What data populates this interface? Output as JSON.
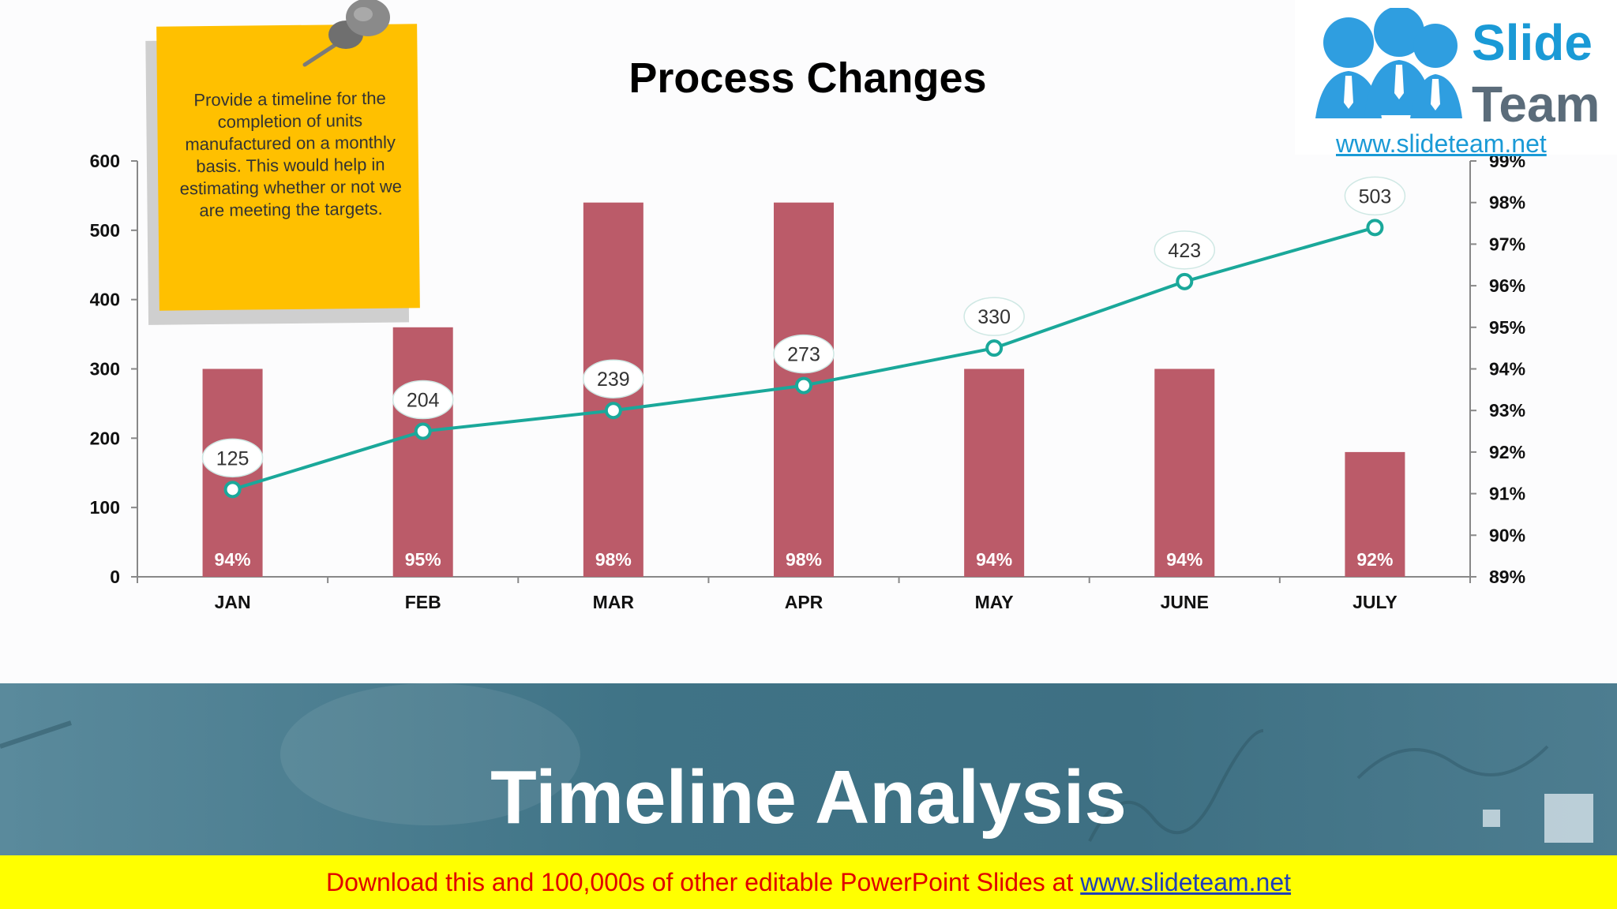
{
  "chart_data": {
    "type": "bar",
    "title": "Process Changes",
    "categories": [
      "JAN",
      "FEB",
      "MAR",
      "APR",
      "MAY",
      "JUNE",
      "JULY"
    ],
    "y_left_range": [
      0,
      600
    ],
    "y_left_ticks": [
      "0",
      "100",
      "200",
      "300",
      "400",
      "500",
      "600"
    ],
    "y_right_range": [
      89,
      99
    ],
    "y_right_ticks": [
      "89%",
      "90%",
      "91%",
      "92%",
      "93%",
      "94%",
      "95%",
      "96%",
      "97%",
      "98%",
      "99%"
    ],
    "series": [
      {
        "type": "bar",
        "values": [
          300,
          360,
          540,
          540,
          300,
          300,
          180
        ],
        "labels": [
          "94%",
          "95%",
          "98%",
          "98%",
          "94%",
          "94%",
          "92%"
        ],
        "color": "#bb5b69"
      },
      {
        "type": "line",
        "axis": "right",
        "values": [
          91.1,
          92.5,
          93.0,
          93.6,
          94.5,
          96.1,
          97.4
        ],
        "labels": [
          "125",
          "204",
          "239",
          "273",
          "330",
          "423",
          "503"
        ],
        "color": "#1aa89a"
      }
    ],
    "grid": false,
    "legend": "none"
  },
  "note": {
    "text": "Provide a timeline for the completion of  units manufactured on a monthly basis. This would help in estimating whether or not we are meeting the targets."
  },
  "logo": {
    "word1": "Slide",
    "word2": "Team",
    "url": "www.slideteam.net"
  },
  "banner": {
    "title": "Timeline Analysis"
  },
  "footer": {
    "text": "Download this and 100,000s of other editable PowerPoint Slides at ",
    "link": "www.slideteam.net"
  },
  "colors": {
    "bar": "#bb5b69",
    "line": "#1aa89a",
    "note": "#ffc000",
    "banner": "#3f7386",
    "footer": "#ffff00"
  }
}
